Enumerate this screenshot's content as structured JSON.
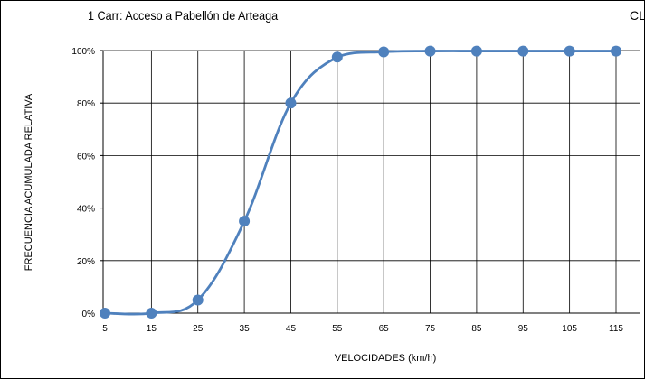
{
  "title": "1 Carr: Acceso a Pabellón de Arteaga",
  "title_right": "CL",
  "chart_data": {
    "type": "line",
    "title": "1 Carr: Acceso a Pabellón de Arteaga",
    "xlabel": "VELOCIDADES  (km/h)",
    "ylabel": "FRECUENCIA ACUMULADA RELATIVA",
    "categories": [
      "5",
      "15",
      "25",
      "35",
      "45",
      "55",
      "65",
      "75",
      "85",
      "95",
      "105",
      "115"
    ],
    "x": [
      5,
      15,
      25,
      35,
      45,
      55,
      65,
      75,
      85,
      95,
      105,
      115
    ],
    "yticks": [
      {
        "value": 0,
        "label": "0%"
      },
      {
        "value": 20,
        "label": "20%"
      },
      {
        "value": 40,
        "label": "40%"
      },
      {
        "value": 60,
        "label": "60%"
      },
      {
        "value": 80,
        "label": "80%"
      },
      {
        "value": 100,
        "label": "100%"
      }
    ],
    "ylim": [
      0,
      100
    ],
    "grid": true,
    "series": [
      {
        "values": [
          0,
          0,
          5,
          35,
          80,
          97.5,
          99.5,
          99.8,
          99.8,
          99.8,
          99.8,
          99.8
        ],
        "color": "#4f81bd"
      }
    ]
  }
}
